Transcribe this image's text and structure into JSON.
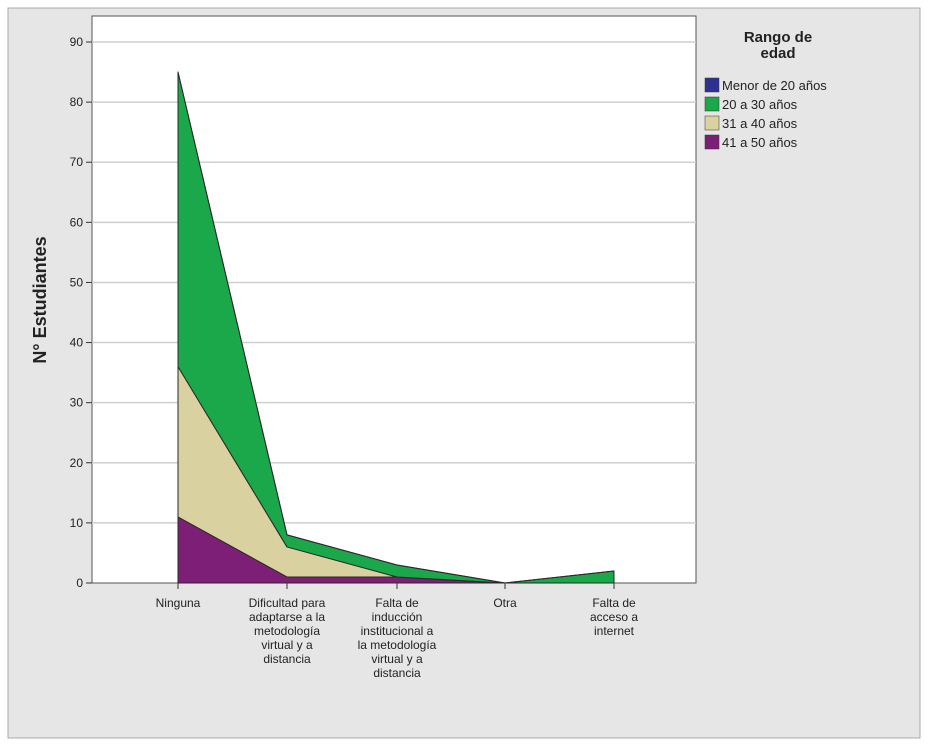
{
  "chart_data": {
    "type": "area",
    "stacked": true,
    "title": "",
    "xlabel": "",
    "ylabel": "N° Estudiantes",
    "ylim": [
      0,
      95
    ],
    "yticks": [
      0,
      10,
      20,
      30,
      40,
      50,
      60,
      70,
      80,
      90
    ],
    "grid": true,
    "categories": [
      [
        "Ninguna"
      ],
      [
        "Dificultad para",
        "adaptarse a la",
        "metodología",
        "virtual y a",
        "distancia"
      ],
      [
        "Falta de",
        "inducción",
        "institucional a",
        "la metodología",
        "virtual y a",
        "distancia"
      ],
      [
        "Otra"
      ],
      [
        "Falta de",
        "acceso a",
        "internet"
      ]
    ],
    "legend": {
      "title": "Rango de edad",
      "title_lines": [
        "Rango de",
        "edad"
      ],
      "position": "right"
    },
    "series": [
      {
        "name": "Menor de 20 años",
        "color": "#2e3192",
        "values": [
          0,
          0,
          0,
          0,
          0
        ]
      },
      {
        "name": "20 a 30 años",
        "color": "#1aa84a",
        "values": [
          49,
          2,
          2,
          0,
          2
        ]
      },
      {
        "name": "31 a 40 años",
        "color": "#d9d2a0",
        "values": [
          25,
          5,
          0,
          0,
          0
        ]
      },
      {
        "name": "41 a 50 años",
        "color": "#7d1e77",
        "values": [
          11,
          1,
          1,
          0,
          0
        ]
      }
    ]
  }
}
